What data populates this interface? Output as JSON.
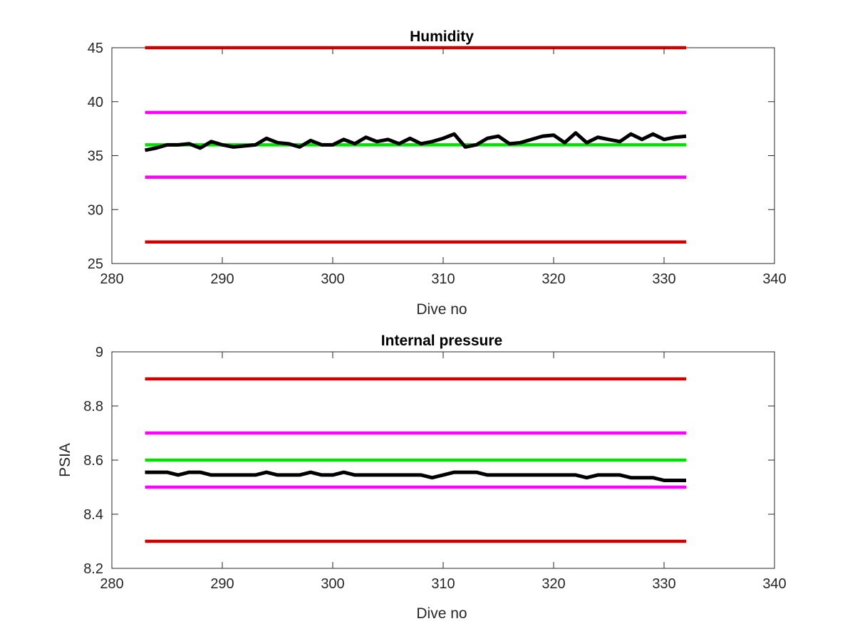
{
  "chart_data": [
    {
      "type": "line",
      "title": "Humidity",
      "xlabel": "Dive no",
      "ylabel": "",
      "xlim": [
        280,
        340
      ],
      "ylim": [
        25,
        45
      ],
      "xticks": [
        "280",
        "290",
        "300",
        "310",
        "320",
        "330",
        "340"
      ],
      "yticks": [
        "25",
        "30",
        "35",
        "40",
        "45"
      ],
      "grid": false,
      "series": [
        {
          "role": "data",
          "color": "#000000",
          "x": [
            283,
            284,
            285,
            286,
            287,
            288,
            289,
            290,
            291,
            292,
            293,
            294,
            295,
            296,
            297,
            298,
            299,
            300,
            301,
            302,
            303,
            304,
            305,
            306,
            307,
            308,
            309,
            310,
            311,
            312,
            313,
            314,
            315,
            316,
            317,
            318,
            319,
            320,
            321,
            322,
            323,
            324,
            325,
            326,
            327,
            328,
            329,
            330,
            331,
            332
          ],
          "values": [
            35.5,
            35.7,
            36.0,
            36.0,
            36.1,
            35.7,
            36.3,
            36.0,
            35.8,
            35.9,
            36.0,
            36.6,
            36.2,
            36.1,
            35.8,
            36.4,
            36.0,
            36.0,
            36.5,
            36.1,
            36.7,
            36.3,
            36.5,
            36.1,
            36.6,
            36.1,
            36.3,
            36.6,
            37.0,
            35.8,
            36.0,
            36.6,
            36.8,
            36.1,
            36.2,
            36.5,
            36.8,
            36.9,
            36.2,
            37.1,
            36.2,
            36.7,
            36.5,
            36.3,
            37.0,
            36.5,
            37.0,
            36.5,
            36.7,
            36.8
          ]
        },
        {
          "role": "upper-limit",
          "color": "#d00000",
          "x": [
            283,
            332
          ],
          "values": [
            45,
            45
          ]
        },
        {
          "role": "upper-warning",
          "color": "#ff00ff",
          "x": [
            283,
            332
          ],
          "values": [
            39,
            39
          ]
        },
        {
          "role": "target",
          "color": "#00e000",
          "x": [
            283,
            332
          ],
          "values": [
            36,
            36
          ]
        },
        {
          "role": "lower-warning",
          "color": "#ff00ff",
          "x": [
            283,
            332
          ],
          "values": [
            33,
            33
          ]
        },
        {
          "role": "lower-limit",
          "color": "#d00000",
          "x": [
            283,
            332
          ],
          "values": [
            27,
            27
          ]
        }
      ]
    },
    {
      "type": "line",
      "title": "Internal pressure",
      "xlabel": "Dive no",
      "ylabel": "PSIA",
      "xlim": [
        280,
        340
      ],
      "ylim": [
        8.2,
        9
      ],
      "xticks": [
        "280",
        "290",
        "300",
        "310",
        "320",
        "330",
        "340"
      ],
      "yticks": [
        "8.2",
        "8.4",
        "8.6",
        "8.8",
        "9"
      ],
      "grid": false,
      "series": [
        {
          "role": "data",
          "color": "#000000",
          "x": [
            283,
            284,
            285,
            286,
            287,
            288,
            289,
            290,
            291,
            292,
            293,
            294,
            295,
            296,
            297,
            298,
            299,
            300,
            301,
            302,
            303,
            304,
            305,
            306,
            307,
            308,
            309,
            310,
            311,
            312,
            313,
            314,
            315,
            316,
            317,
            318,
            319,
            320,
            321,
            322,
            323,
            324,
            325,
            326,
            327,
            328,
            329,
            330,
            331,
            332
          ],
          "values": [
            8.555,
            8.555,
            8.555,
            8.545,
            8.555,
            8.555,
            8.545,
            8.545,
            8.545,
            8.545,
            8.545,
            8.555,
            8.545,
            8.545,
            8.545,
            8.555,
            8.545,
            8.545,
            8.555,
            8.545,
            8.545,
            8.545,
            8.545,
            8.545,
            8.545,
            8.545,
            8.535,
            8.545,
            8.555,
            8.555,
            8.555,
            8.545,
            8.545,
            8.545,
            8.545,
            8.545,
            8.545,
            8.545,
            8.545,
            8.545,
            8.535,
            8.545,
            8.545,
            8.545,
            8.535,
            8.535,
            8.535,
            8.525,
            8.525,
            8.525
          ]
        },
        {
          "role": "upper-limit",
          "color": "#d00000",
          "x": [
            283,
            332
          ],
          "values": [
            8.9,
            8.9
          ]
        },
        {
          "role": "upper-warning",
          "color": "#ff00ff",
          "x": [
            283,
            332
          ],
          "values": [
            8.7,
            8.7
          ]
        },
        {
          "role": "target",
          "color": "#00e000",
          "x": [
            283,
            332
          ],
          "values": [
            8.6,
            8.6
          ]
        },
        {
          "role": "lower-warning",
          "color": "#ff00ff",
          "x": [
            283,
            332
          ],
          "values": [
            8.5,
            8.5
          ]
        },
        {
          "role": "lower-limit",
          "color": "#d00000",
          "x": [
            283,
            332
          ],
          "values": [
            8.3,
            8.3
          ]
        }
      ]
    }
  ]
}
